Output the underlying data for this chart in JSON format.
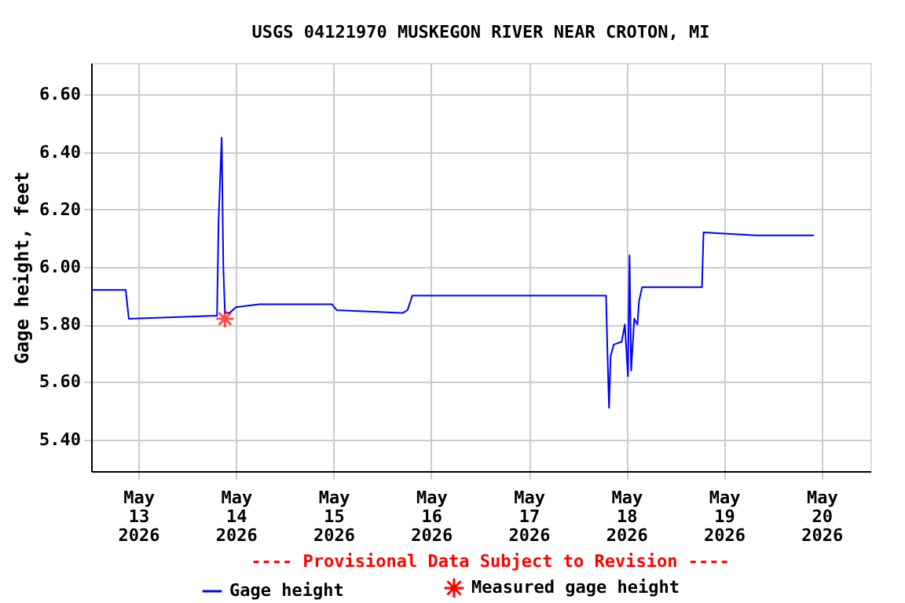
{
  "chart_data": {
    "type": "line",
    "title": "USGS 04121970 MUSKEGON RIVER NEAR CROTON, MI",
    "ylabel": "Gage height, feet",
    "xlim": [
      "2026-05-12T12:24",
      "2026-05-20T12:00"
    ],
    "xticks": [
      {
        "value": "2026-05-13",
        "label": "May 13 2026"
      },
      {
        "value": "2026-05-14",
        "label": "May 14 2026"
      },
      {
        "value": "2026-05-15",
        "label": "May 15 2026"
      },
      {
        "value": "2026-05-16",
        "label": "May 16 2026"
      },
      {
        "value": "2026-05-17",
        "label": "May 17 2026"
      },
      {
        "value": "2026-05-18",
        "label": "May 18 2026"
      },
      {
        "value": "2026-05-19",
        "label": "May 19 2026"
      },
      {
        "value": "2026-05-20",
        "label": "May 20 2026"
      }
    ],
    "ylim": [
      5.29,
      6.71
    ],
    "yticks": [
      {
        "value": 5.4,
        "label": "5.40"
      },
      {
        "value": 5.6,
        "label": "5.60"
      },
      {
        "value": 5.8,
        "label": "5.80"
      },
      {
        "value": 6.0,
        "label": "6.00"
      },
      {
        "value": 6.2,
        "label": "6.20"
      },
      {
        "value": 6.4,
        "label": "6.40"
      },
      {
        "value": 6.6,
        "label": "6.60"
      }
    ],
    "grid": true,
    "legend": "bottom",
    "annotations": [
      "---- Provisional Data Subject to Revision ----"
    ],
    "series": [
      {
        "name": "Gage height",
        "color": "#0000ff",
        "x": [
          "2026-05-12T12:24",
          "2026-05-12T20:54",
          "2026-05-12T21:40",
          "2026-05-13T18:12",
          "2026-05-13T19:21",
          "2026-05-13T19:44",
          "2026-05-13T20:30",
          "2026-05-13T20:54",
          "2026-05-13T21:18",
          "2026-05-13T22:27",
          "2026-05-14T00:00",
          "2026-05-14T05:48",
          "2026-05-14T23:36",
          "2026-05-15T00:46",
          "2026-05-15T17:02",
          "2026-05-15T18:12",
          "2026-05-15T19:21",
          "2026-05-17T19:00",
          "2026-05-17T19:21",
          "2026-05-17T19:44",
          "2026-05-17T20:08",
          "2026-05-17T20:54",
          "2026-05-17T22:51",
          "2026-05-17T23:37",
          "2026-05-18T00:23",
          "2026-05-18T00:46",
          "2026-05-18T01:10",
          "2026-05-18T01:56",
          "2026-05-18T02:43",
          "2026-05-18T03:06",
          "2026-05-18T03:52",
          "2026-05-18T18:35",
          "2026-05-18T18:58",
          "2026-05-19T07:45",
          "2026-05-19T22:04"
        ],
        "values": [
          5.92,
          5.92,
          5.82,
          5.83,
          5.83,
          6.16,
          6.45,
          6.0,
          5.84,
          5.84,
          5.86,
          5.87,
          5.87,
          5.85,
          5.84,
          5.85,
          5.9,
          5.9,
          5.7,
          5.51,
          5.69,
          5.73,
          5.74,
          5.8,
          5.62,
          6.04,
          5.64,
          5.82,
          5.8,
          5.88,
          5.93,
          5.93,
          6.12,
          6.11,
          6.11
        ]
      },
      {
        "name": "Measured gage height",
        "color": "#ff0000",
        "type": "scatter",
        "marker": "cross",
        "x": [
          "2026-05-13T21:18"
        ],
        "values": [
          5.82
        ]
      }
    ]
  }
}
